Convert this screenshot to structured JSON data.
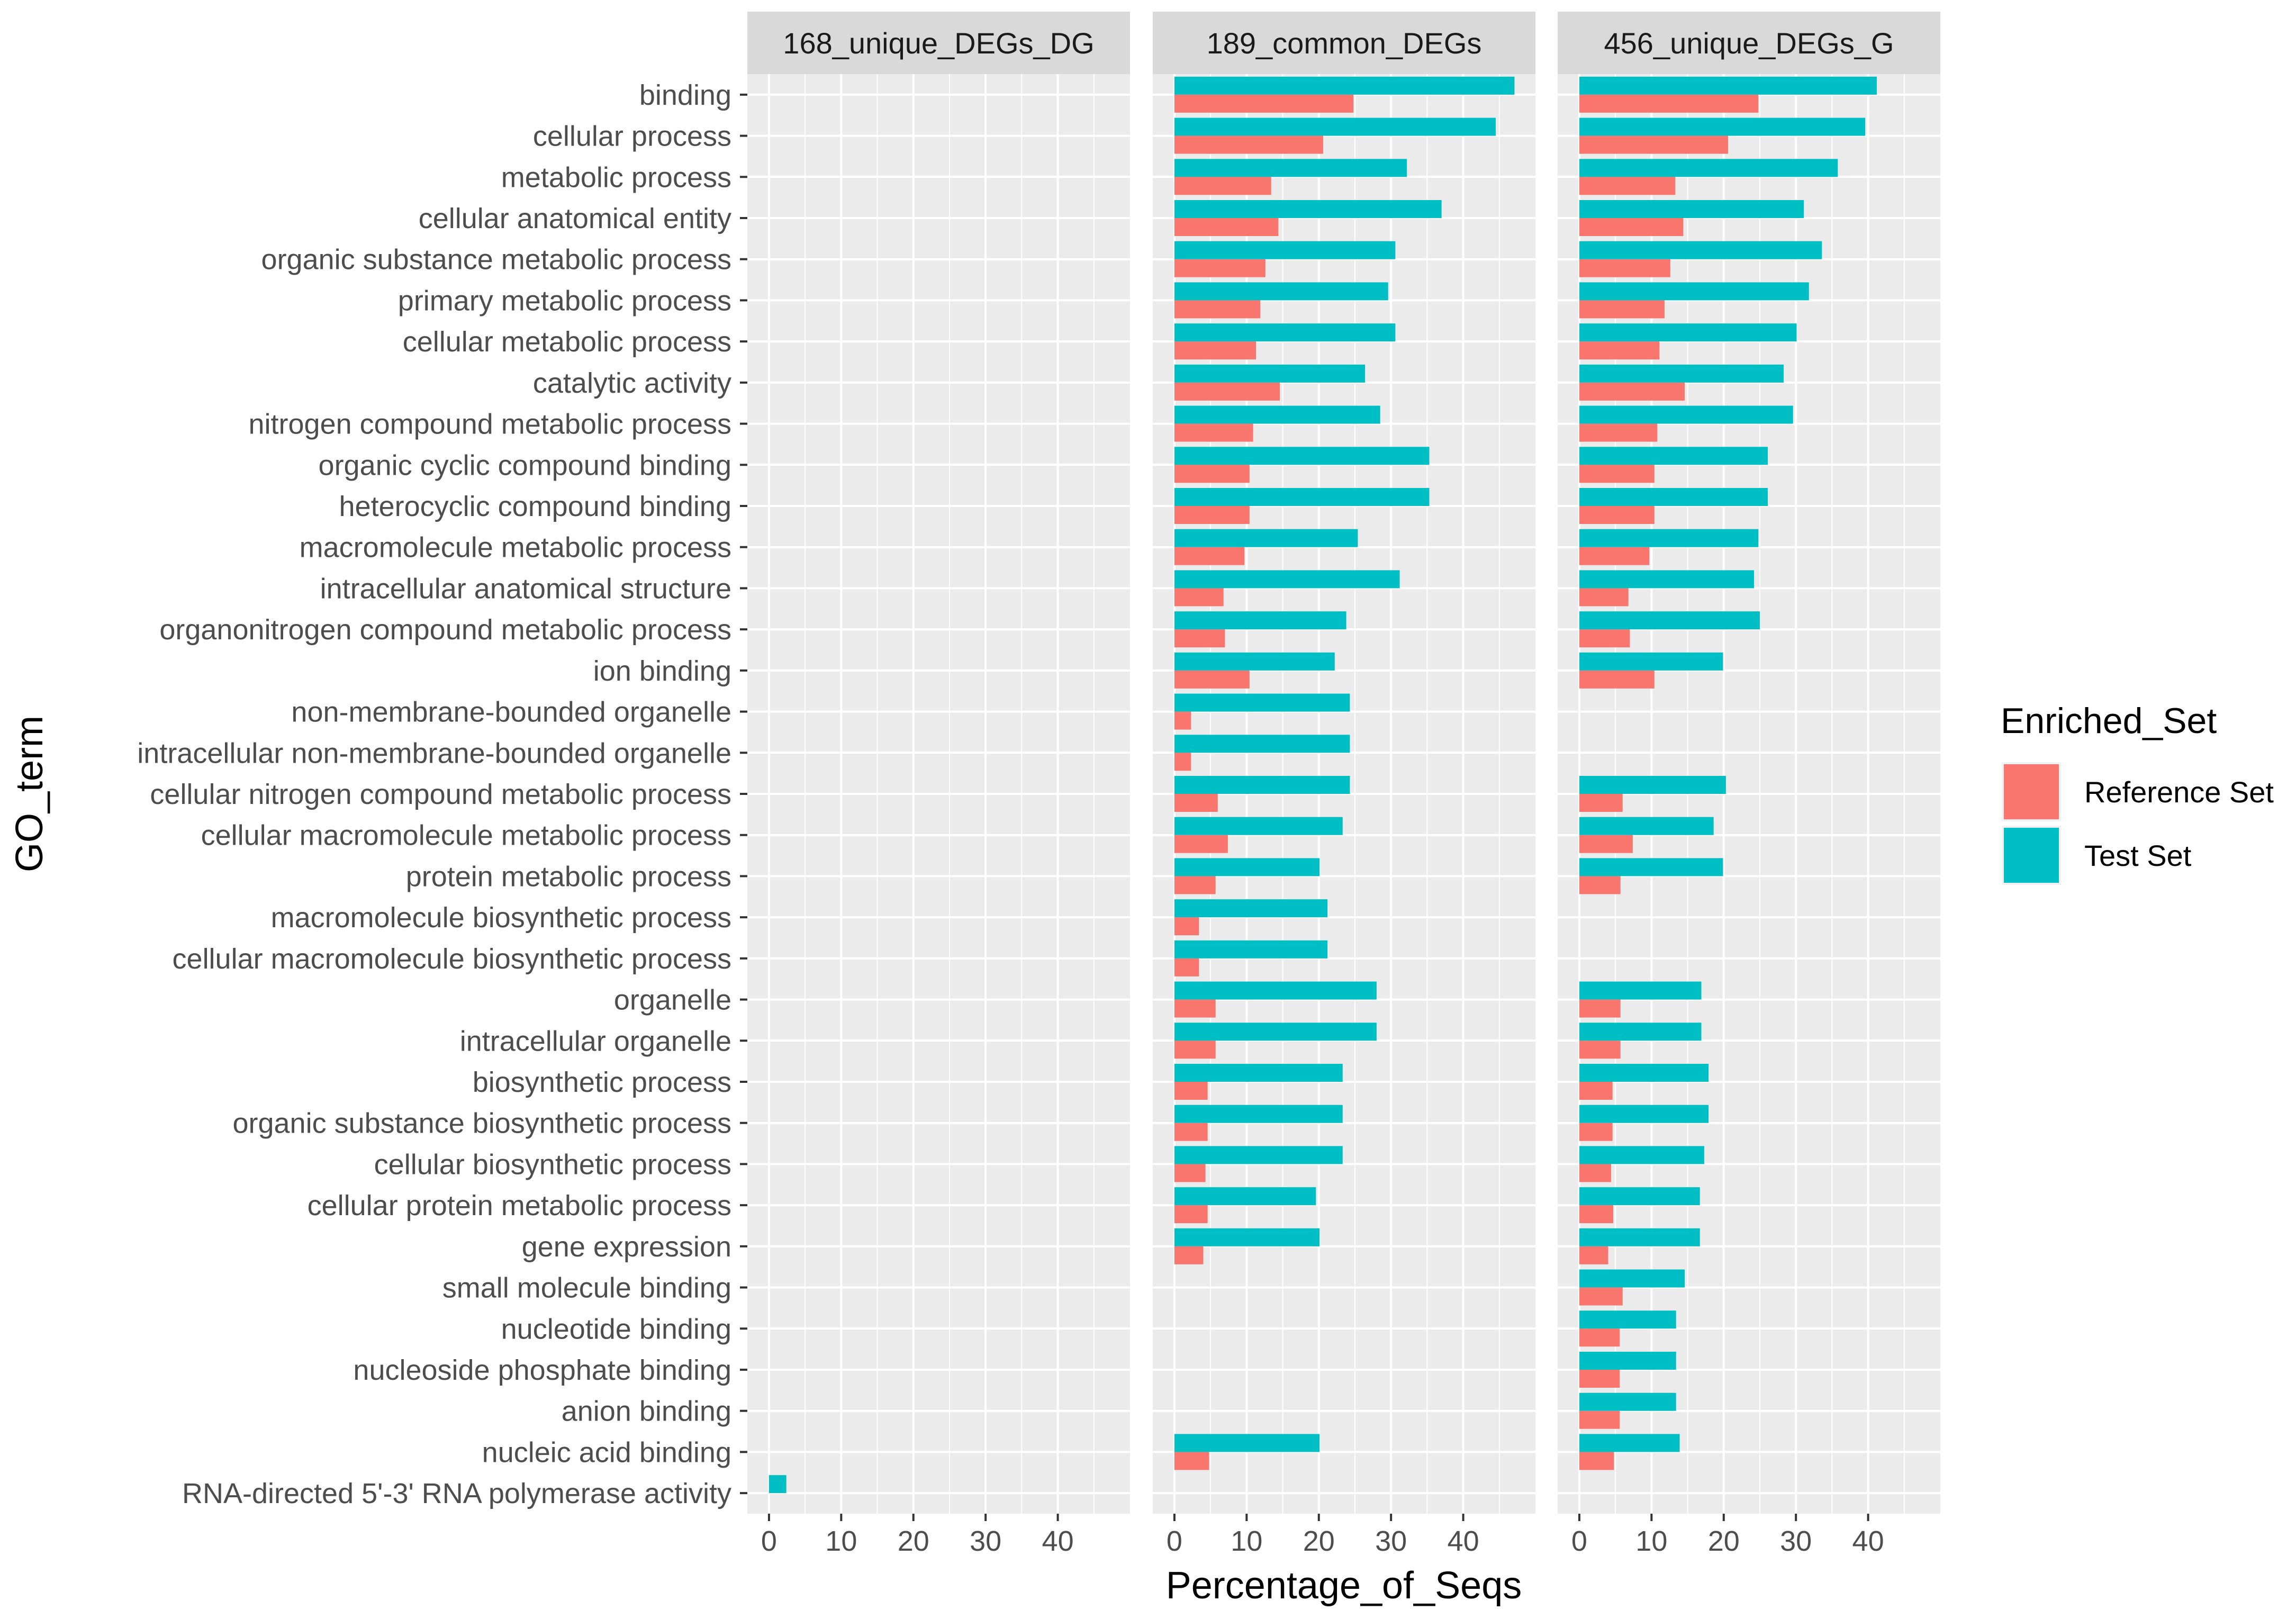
{
  "chart_data": {
    "type": "bar",
    "orientation": "horizontal",
    "xlabel": "Percentage_of_Seqs",
    "ylabel": "GO_term",
    "xlim": [
      -3,
      50
    ],
    "xticks": [
      0,
      10,
      20,
      30,
      40
    ],
    "grid": true,
    "legend": {
      "title": "Enriched_Set",
      "placement": "right",
      "entries": [
        {
          "name": "Reference Set",
          "color": "#F8766D"
        },
        {
          "name": "Test Set",
          "color": "#00BFC4"
        }
      ]
    },
    "categories": [
      "binding",
      "cellular process",
      "metabolic process",
      "cellular anatomical entity",
      "organic substance metabolic process",
      "primary metabolic process",
      "cellular metabolic process",
      "catalytic activity",
      "nitrogen compound metabolic process",
      "organic cyclic compound binding",
      "heterocyclic compound binding",
      "macromolecule metabolic process",
      "intracellular anatomical structure",
      "organonitrogen compound metabolic process",
      "ion binding",
      "non-membrane-bounded organelle",
      "intracellular non-membrane-bounded organelle",
      "cellular nitrogen compound metabolic process",
      "cellular macromolecule metabolic process",
      "protein metabolic process",
      "macromolecule biosynthetic process",
      "cellular macromolecule biosynthetic process",
      "organelle",
      "intracellular organelle",
      "biosynthetic process",
      "organic substance biosynthetic process",
      "cellular biosynthetic process",
      "cellular protein metabolic process",
      "gene expression",
      "small molecule binding",
      "nucleotide binding",
      "nucleoside phosphate binding",
      "anion binding",
      "nucleic acid binding",
      "RNA-directed 5'-3' RNA polymerase activity"
    ],
    "panels": [
      {
        "title": "168_unique_DEGs_DG",
        "series": [
          {
            "name": "Reference Set",
            "values": [
              null,
              null,
              null,
              null,
              null,
              null,
              null,
              null,
              null,
              null,
              null,
              null,
              null,
              null,
              null,
              null,
              null,
              null,
              null,
              null,
              null,
              null,
              null,
              null,
              null,
              null,
              null,
              null,
              null,
              null,
              null,
              null,
              null,
              null,
              null
            ]
          },
          {
            "name": "Test Set",
            "values": [
              null,
              null,
              null,
              null,
              null,
              null,
              null,
              null,
              null,
              null,
              null,
              null,
              null,
              null,
              null,
              null,
              null,
              null,
              null,
              null,
              null,
              null,
              null,
              null,
              null,
              null,
              null,
              null,
              null,
              null,
              null,
              null,
              null,
              null,
              2.4
            ]
          }
        ]
      },
      {
        "title": "189_common_DEGs",
        "series": [
          {
            "name": "Reference Set",
            "values": [
              24.8,
              20.6,
              13.4,
              14.4,
              12.6,
              11.9,
              11.3,
              14.6,
              10.9,
              10.4,
              10.4,
              9.7,
              6.8,
              7.0,
              10.4,
              2.3,
              2.3,
              6.0,
              7.4,
              5.7,
              3.4,
              3.4,
              5.7,
              5.7,
              4.6,
              4.6,
              4.3,
              4.6,
              4.0,
              null,
              null,
              null,
              null,
              4.8,
              null
            ]
          },
          {
            "name": "Test Set",
            "values": [
              47.1,
              44.5,
              32.2,
              37.0,
              30.6,
              29.6,
              30.6,
              26.4,
              28.5,
              35.3,
              35.3,
              25.4,
              31.2,
              23.8,
              22.2,
              24.3,
              24.3,
              24.3,
              23.3,
              20.1,
              21.2,
              21.2,
              28.0,
              28.0,
              23.3,
              23.3,
              23.3,
              19.6,
              20.1,
              null,
              null,
              null,
              null,
              20.1,
              null
            ]
          }
        ]
      },
      {
        "title": "456_unique_DEGs_G",
        "series": [
          {
            "name": "Reference Set",
            "values": [
              24.8,
              20.6,
              13.3,
              14.4,
              12.6,
              11.8,
              11.1,
              14.6,
              10.8,
              10.4,
              10.4,
              9.7,
              6.8,
              7.0,
              10.4,
              null,
              null,
              6.0,
              7.4,
              5.7,
              null,
              null,
              5.7,
              5.7,
              4.6,
              4.6,
              4.4,
              4.7,
              4.0,
              6.0,
              5.6,
              5.6,
              5.6,
              4.8,
              null
            ]
          },
          {
            "name": "Test Set",
            "values": [
              41.2,
              39.6,
              35.8,
              31.1,
              33.6,
              31.8,
              30.1,
              28.3,
              29.6,
              26.1,
              26.1,
              24.8,
              24.2,
              25.0,
              19.9,
              null,
              null,
              20.3,
              18.6,
              19.9,
              null,
              null,
              16.9,
              16.9,
              17.9,
              17.9,
              17.3,
              16.7,
              16.7,
              14.6,
              13.4,
              13.4,
              13.4,
              13.9,
              null
            ]
          }
        ]
      }
    ]
  }
}
